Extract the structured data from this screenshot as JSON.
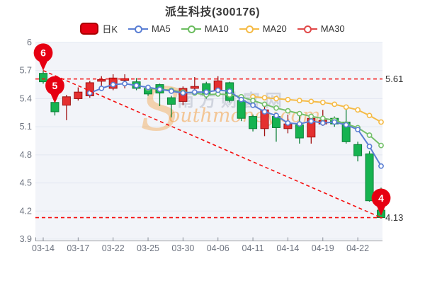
{
  "header": {
    "title": "派生科技(300176)"
  },
  "legend": {
    "items": [
      {
        "label": "日K",
        "marker": "swatch",
        "color": "#e60012",
        "border": "#aa0000"
      },
      {
        "label": "MA5",
        "marker": "line-circle",
        "color": "#5b7fd4"
      },
      {
        "label": "MA10",
        "marker": "line-circle",
        "color": "#6cbd60"
      },
      {
        "label": "MA20",
        "marker": "line-circle",
        "color": "#f5bb47"
      },
      {
        "label": "MA30",
        "marker": "line-circle",
        "color": "#e04848"
      }
    ]
  },
  "watermark": {
    "initial": "S",
    "rest": "outhmoney.com",
    "chinese": "南方财富网",
    "orange": "#f39833",
    "grey": "#8a93a6"
  },
  "chart_data": {
    "type": "candlestick",
    "title": "派生科技(300176)",
    "ylim": [
      3.9,
      6.0
    ],
    "ytick_values": [
      6.0,
      5.7,
      5.4,
      5.1,
      4.8,
      4.5,
      4.2,
      3.9
    ],
    "ytick_labels": [
      "6",
      "5.7",
      "5.4",
      "5.1",
      "4.8",
      "4.5",
      "4.2",
      "3.9"
    ],
    "xtick_labels": [
      "03-14",
      "03-17",
      "03-22",
      "03-25",
      "03-30",
      "04-06",
      "04-11",
      "04-14",
      "04-19",
      "04-22"
    ],
    "xtick_indices": [
      0,
      3,
      6,
      9,
      12,
      15,
      18,
      21,
      24,
      27
    ],
    "dates": [
      "03-14",
      "03-15",
      "03-16",
      "03-17",
      "03-18",
      "03-21",
      "03-22",
      "03-23",
      "03-24",
      "03-25",
      "03-28",
      "03-29",
      "03-30",
      "03-31",
      "04-01",
      "04-06",
      "04-07",
      "04-08",
      "04-11",
      "04-12",
      "04-13",
      "04-14",
      "04-15",
      "04-18",
      "04-19",
      "04-20",
      "04-21",
      "04-22",
      "04-25",
      "04-26"
    ],
    "ohlc": [
      [
        5.67,
        5.7,
        5.56,
        5.58
      ],
      [
        5.36,
        5.4,
        5.22,
        5.26
      ],
      [
        5.33,
        5.44,
        5.17,
        5.42
      ],
      [
        5.4,
        5.52,
        5.38,
        5.47
      ],
      [
        5.43,
        5.59,
        5.41,
        5.57
      ],
      [
        5.59,
        5.64,
        5.51,
        5.6
      ],
      [
        5.51,
        5.66,
        5.49,
        5.62
      ],
      [
        5.6,
        5.66,
        5.51,
        5.61
      ],
      [
        5.58,
        5.62,
        5.49,
        5.51
      ],
      [
        5.51,
        5.53,
        5.43,
        5.45
      ],
      [
        5.55,
        5.56,
        5.32,
        5.46
      ],
      [
        5.41,
        5.43,
        5.2,
        5.34
      ],
      [
        5.37,
        5.53,
        5.33,
        5.51
      ],
      [
        5.51,
        5.63,
        5.44,
        5.53
      ],
      [
        5.56,
        5.58,
        5.4,
        5.44
      ],
      [
        5.49,
        5.64,
        5.47,
        5.59
      ],
      [
        5.57,
        5.58,
        5.36,
        5.38
      ],
      [
        5.38,
        5.4,
        5.16,
        5.19
      ],
      [
        5.21,
        5.23,
        5.05,
        5.08
      ],
      [
        5.08,
        5.32,
        5.0,
        5.28
      ],
      [
        5.21,
        5.23,
        4.94,
        5.09
      ],
      [
        5.08,
        5.23,
        5.03,
        5.13
      ],
      [
        5.12,
        5.25,
        4.92,
        4.98
      ],
      [
        4.99,
        5.21,
        4.92,
        5.19
      ],
      [
        5.13,
        5.28,
        5.11,
        5.17
      ],
      [
        5.19,
        5.21,
        5.1,
        5.13
      ],
      [
        5.15,
        5.33,
        4.92,
        4.94
      ],
      [
        4.91,
        4.94,
        4.73,
        4.79
      ],
      [
        4.81,
        4.84,
        4.3,
        4.31
      ],
      [
        4.21,
        4.45,
        4.12,
        4.13
      ]
    ],
    "candle_colors": {
      "up_fill": "#e43030",
      "up_stroke": "#a01010",
      "down_fill": "#16b350",
      "down_stroke": "#0c8038"
    },
    "series": [
      {
        "name": "MA5",
        "color": "#5b7fd4",
        "start_index": 4,
        "values": [
          5.46,
          5.51,
          5.55,
          5.56,
          5.54,
          5.52,
          5.5,
          5.48,
          5.46,
          5.47,
          5.47,
          5.49,
          5.48,
          5.39,
          5.33,
          5.26,
          5.22,
          5.14,
          5.13,
          5.16,
          5.14,
          5.15,
          5.12,
          5.07,
          4.89,
          4.68
        ]
      },
      {
        "name": "MA10",
        "color": "#74c06a",
        "start_index": 9,
        "values": [
          5.51,
          5.5,
          5.49,
          5.47,
          5.46,
          5.44,
          5.45,
          5.44,
          5.42,
          5.38,
          5.34,
          5.3,
          5.27,
          5.24,
          5.21,
          5.19,
          5.17,
          5.13,
          5.09,
          5.01,
          4.9
        ]
      },
      {
        "name": "MA20",
        "color": "#f5bb47",
        "start_index": 18,
        "values": [
          5.42,
          5.41,
          5.4,
          5.39,
          5.38,
          5.37,
          5.36,
          5.34,
          5.31,
          5.28,
          5.22,
          5.15
        ]
      },
      {
        "name": "MA30",
        "color": "#e04848",
        "start_index": 29,
        "values": []
      }
    ],
    "annotations": {
      "hlines": [
        {
          "value": 5.61,
          "label": "5.61"
        },
        {
          "value": 4.13,
          "label": "4.13"
        }
      ],
      "trendline": {
        "from_index": 0,
        "from_value": 5.7,
        "to_index": 29,
        "to_value": 4.13
      },
      "markers": [
        {
          "label": "6",
          "index": 0,
          "value": 5.7
        },
        {
          "label": "5",
          "index": 1,
          "value": 5.35
        },
        {
          "label": "4",
          "index": 29,
          "value": 4.15
        }
      ],
      "line_color": "#f50f0f",
      "marker_fill": "#e60012",
      "marker_text_color": "#ffffff",
      "label_color": "#333333"
    },
    "axis_color": "#8a8f99",
    "label_color": "#6e7480",
    "grid_color": "#e2e7f1",
    "plot_bg": "#f2f4f9"
  }
}
